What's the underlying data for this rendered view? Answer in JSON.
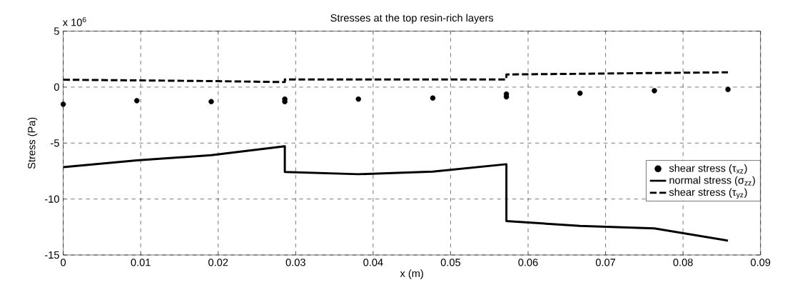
{
  "chart_data": {
    "type": "line",
    "title": "Stresses at the top resin-rich layers",
    "xlabel": "x (m)",
    "ylabel": "Stress (Pa)",
    "annotations": [
      "x 10$^{6}$"
    ],
    "xlim": [
      0,
      0.09
    ],
    "ylim": [
      -15,
      5
    ],
    "xticks": [
      0,
      0.01,
      0.02,
      0.03,
      0.04,
      0.05,
      0.06,
      0.07,
      0.08,
      0.09
    ],
    "yticks": [
      -15,
      -10,
      -5,
      0,
      5
    ],
    "grid": true,
    "legend": "right",
    "series": [
      {
        "name": "shear stress (τ$_{xz}$)",
        "type": "scatter",
        "marker": "circle",
        "color": "#000000",
        "x": [
          0,
          0.0095,
          0.0191,
          0.0286,
          0.0286,
          0.0381,
          0.0477,
          0.0572,
          0.0572,
          0.0667,
          0.0763,
          0.0858
        ],
        "values": [
          -1.53,
          -1.21,
          -1.3,
          -1.07,
          -1.3,
          -1.07,
          -0.98,
          -0.62,
          -0.87,
          -0.55,
          -0.32,
          -0.21
        ]
      },
      {
        "name": "normal stress (σ$_{zz}$)",
        "type": "line",
        "line_style": "solid",
        "color": "#000000",
        "x": [
          0,
          0.0095,
          0.0191,
          0.0286,
          0.0286,
          0.0381,
          0.0477,
          0.0572,
          0.0572,
          0.0667,
          0.0763,
          0.0858
        ],
        "values": [
          -7.15,
          -6.55,
          -6.08,
          -5.28,
          -7.58,
          -7.78,
          -7.55,
          -6.89,
          -11.97,
          -12.4,
          -12.62,
          -13.72
        ]
      },
      {
        "name": "shear stress (τ$_{yz}$)",
        "type": "line",
        "line_style": "dashed",
        "color": "#000000",
        "x": [
          0,
          0.0095,
          0.0191,
          0.0286,
          0.0286,
          0.0381,
          0.0477,
          0.0572,
          0.0572,
          0.0667,
          0.0763,
          0.0858
        ],
        "values": [
          0.66,
          0.6,
          0.54,
          0.45,
          0.68,
          0.68,
          0.68,
          0.68,
          1.13,
          1.19,
          1.26,
          1.32
        ]
      }
    ]
  }
}
